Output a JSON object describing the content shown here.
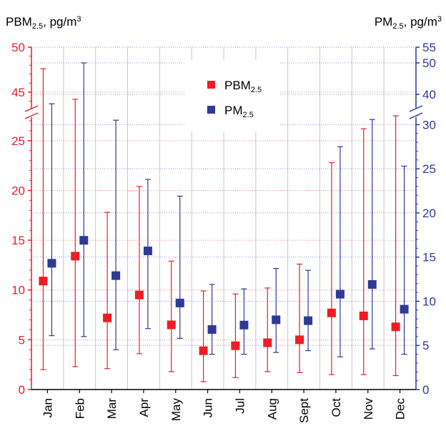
{
  "chart_data": {
    "type": "scatter",
    "categories": [
      "Jan",
      "Feb",
      "Mar",
      "Apr",
      "May",
      "Jun",
      "Jul",
      "Aug",
      "Sept",
      "Oct",
      "Nov",
      "Dec"
    ],
    "left_axis": {
      "title_main": "PBM",
      "title_sub": "2.5",
      "title_rest": ", pg/m",
      "title_sup": "3",
      "ticks_lower": [
        "0",
        "5",
        "10",
        "15",
        "20",
        "25"
      ],
      "ticks_upper": [
        "45",
        "50"
      ],
      "range_lower": [
        0,
        27.5
      ],
      "range_upper": [
        43,
        50
      ],
      "color": "#ee1c25"
    },
    "right_axis": {
      "title_main": "PM",
      "title_sub": "2.5",
      "title_rest": ", pg/m",
      "title_sup": "3",
      "ticks_lower": [
        "0",
        "5",
        "10",
        "15",
        "20",
        "25",
        "30"
      ],
      "ticks_upper": [
        "40",
        "50",
        "55"
      ],
      "range_lower": [
        0,
        31
      ],
      "range_upper": [
        35,
        55
      ],
      "color": "#2e3a96"
    },
    "legend": {
      "position": "top-center",
      "items": [
        {
          "main": "PBM",
          "sub": "2.5",
          "color": "#ee1c25"
        },
        {
          "main": "PM",
          "sub": "2.5",
          "color": "#2e3a96"
        }
      ]
    },
    "series": [
      {
        "name": "PBM2.5",
        "axis": "left",
        "color": "#ee1c25",
        "values": [
          10.9,
          13.4,
          7.2,
          9.5,
          6.5,
          3.9,
          4.4,
          4.7,
          5.0,
          7.7,
          7.4,
          6.3
        ],
        "lower": [
          2.0,
          2.3,
          2.1,
          3.6,
          1.8,
          0.8,
          1.2,
          1.8,
          1.7,
          1.5,
          1.5,
          1.4
        ],
        "upper": [
          47.6,
          44.2,
          17.8,
          20.4,
          12.9,
          9.9,
          9.6,
          10.2,
          12.6,
          22.8,
          26.2,
          27.5
        ]
      },
      {
        "name": "PM2.5",
        "axis": "right",
        "color": "#2e3a96",
        "values": [
          14.3,
          16.9,
          12.9,
          15.7,
          9.8,
          6.8,
          7.3,
          7.9,
          7.8,
          10.8,
          11.9,
          9.1
        ],
        "lower": [
          6.1,
          6.0,
          4.5,
          6.9,
          5.8,
          4.0,
          4.0,
          4.2,
          4.4,
          3.7,
          4.6,
          4.0
        ],
        "upper": [
          37.0,
          50.0,
          30.5,
          23.8,
          21.9,
          11.9,
          11.4,
          13.7,
          13.5,
          27.5,
          32.0,
          25.3
        ]
      }
    ]
  }
}
